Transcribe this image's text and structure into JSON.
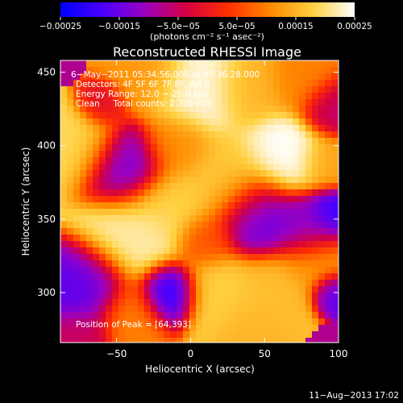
{
  "chart_data": {
    "type": "heatmap",
    "title": "Reconstructed RHESSI Image",
    "xlabel": "Heliocentric X (arcsec)",
    "ylabel": "Heliocentric Y (arcsec)",
    "xlim": [
      -88,
      100
    ],
    "ylim": [
      266,
      458
    ],
    "x_ticks": [
      {
        "value": -50,
        "label": "−50"
      },
      {
        "value": 0,
        "label": "0"
      },
      {
        "value": 50,
        "label": "50"
      },
      {
        "value": 100,
        "label": "100"
      }
    ],
    "y_ticks": [
      {
        "value": 300,
        "label": "300"
      },
      {
        "value": 350,
        "label": "350"
      },
      {
        "value": 400,
        "label": "400"
      },
      {
        "value": 450,
        "label": "450"
      }
    ],
    "colorbar": {
      "range": [
        -0.00025,
        0.00025
      ],
      "ticks": [
        {
          "value": -0.00025,
          "label": "−0.00025"
        },
        {
          "value": -0.00015,
          "label": "−0.00015"
        },
        {
          "value": -5e-05,
          "label": "−5.0e−05"
        },
        {
          "value": 5e-05,
          "label": "5.0e−05"
        },
        {
          "value": 0.00015,
          "label": "0.00015"
        },
        {
          "value": 0.00025,
          "label": "0.00025"
        }
      ],
      "units_label": "(photons cm⁻² s⁻¹ asec⁻²)",
      "colors": [
        "#0000ff",
        "#4a00ff",
        "#9a00c0",
        "#d40040",
        "#ff3000",
        "#ff8a00",
        "#ffd040",
        "#ffffff"
      ]
    },
    "annotations": [
      "6−May−2011 05:34:56.000 to 05:36:28.000",
      "Detectors: 4F 5F 6F 7F 8F, Att 0",
      "Energy Range: 12.0 − 25.0 keV",
      "Clean     Total counts: 2.32E+03"
    ],
    "peak_label": "Position of Peak = [64,393]",
    "peak_position": [
      64,
      393
    ],
    "image_blobs": [
      {
        "x": -75,
        "y": 400,
        "v": 0.00019,
        "s": 14
      },
      {
        "x": -60,
        "y": 428,
        "v": -2e-05,
        "s": 8
      },
      {
        "x": -30,
        "y": 450,
        "v": 0.00012,
        "s": 14
      },
      {
        "x": 5,
        "y": 440,
        "v": 0.00024,
        "s": 16
      },
      {
        "x": 40,
        "y": 440,
        "v": 0.00015,
        "s": 13
      },
      {
        "x": 75,
        "y": 445,
        "v": 0.0001,
        "s": 12
      },
      {
        "x": 95,
        "y": 425,
        "v": -6e-05,
        "s": 10
      },
      {
        "x": -45,
        "y": 385,
        "v": -0.00014,
        "s": 14
      },
      {
        "x": -10,
        "y": 400,
        "v": 0.00011,
        "s": 12
      },
      {
        "x": 25,
        "y": 375,
        "v": 0.00017,
        "s": 16
      },
      {
        "x": 64,
        "y": 393,
        "v": 0.00025,
        "s": 14
      },
      {
        "x": 92,
        "y": 388,
        "v": 0.00013,
        "s": 10
      },
      {
        "x": -40,
        "y": 338,
        "v": 0.00022,
        "s": 17
      },
      {
        "x": -15,
        "y": 360,
        "v": 0.00018,
        "s": 13
      },
      {
        "x": 10,
        "y": 335,
        "v": 6e-05,
        "s": 10
      },
      {
        "x": 45,
        "y": 352,
        "v": -0.00015,
        "s": 14
      },
      {
        "x": 80,
        "y": 345,
        "v": -0.00012,
        "s": 12
      },
      {
        "x": 96,
        "y": 355,
        "v": -0.0002,
        "s": 8
      },
      {
        "x": -70,
        "y": 305,
        "v": -0.00016,
        "s": 14
      },
      {
        "x": -15,
        "y": 300,
        "v": -0.00022,
        "s": 10
      },
      {
        "x": 20,
        "y": 300,
        "v": 0.00018,
        "s": 14
      },
      {
        "x": 55,
        "y": 300,
        "v": 0.00016,
        "s": 14
      },
      {
        "x": 85,
        "y": 320,
        "v": 0.00012,
        "s": 12
      },
      {
        "x": 96,
        "y": 300,
        "v": -0.00018,
        "s": 7
      },
      {
        "x": -40,
        "y": 285,
        "v": 0.0001,
        "s": 12
      },
      {
        "x": 40,
        "y": 275,
        "v": 0.00015,
        "s": 12
      },
      {
        "x": -75,
        "y": 270,
        "v": -5e-05,
        "s": 10
      }
    ]
  },
  "footer": {
    "timestamp": "11−Aug−2013 17:02"
  }
}
